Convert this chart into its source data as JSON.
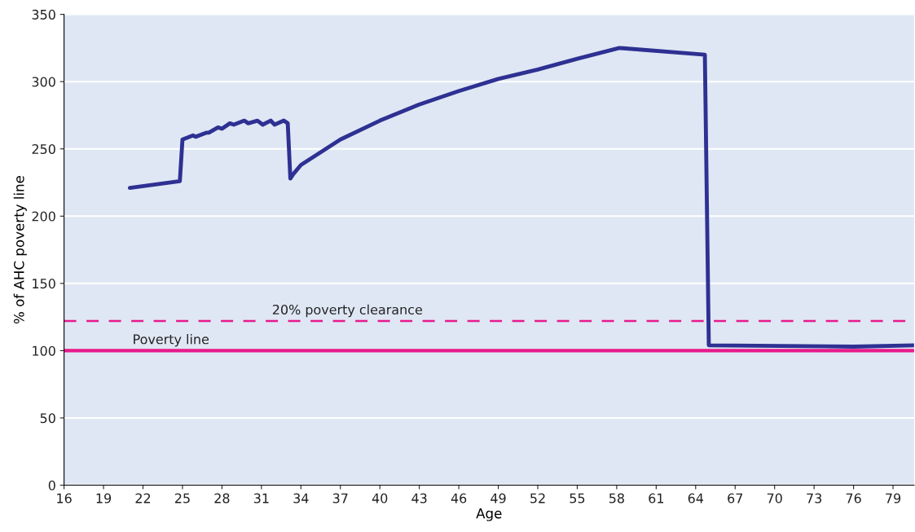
{
  "chart_data": {
    "type": "line",
    "xlabel": "Age",
    "ylabel": "% of AHC poverty line",
    "series": [
      {
        "color": "#2e3192",
        "x": [
          21.0,
          24.8,
          25.0,
          25.8,
          26.0,
          26.8,
          27.0,
          27.7,
          28.0,
          28.6,
          28.9,
          29.7,
          30.0,
          30.7,
          31.1,
          31.7,
          32.0,
          32.7,
          33.0,
          33.2,
          33.4,
          34,
          37,
          40,
          43,
          46,
          49,
          52,
          55,
          58.2,
          64.7,
          65.0,
          76.0,
          80.6
        ],
        "values": [
          221,
          226,
          257,
          260,
          259,
          262,
          262,
          266,
          265,
          269,
          268,
          271,
          269,
          271,
          268,
          271,
          268,
          271,
          269,
          228,
          231,
          238,
          257,
          271,
          283,
          293,
          302,
          309,
          317,
          325,
          320,
          104,
          103,
          104
        ]
      }
    ],
    "xlim": [
      16,
      80.6
    ],
    "xticks": [
      16,
      19,
      22,
      25,
      28,
      31,
      34,
      37,
      40,
      43,
      46,
      49,
      52,
      55,
      58,
      61,
      64,
      67,
      70,
      73,
      76,
      79
    ],
    "ylim": [
      0,
      350
    ],
    "yticks": [
      0,
      50,
      100,
      150,
      200,
      250,
      300,
      350
    ],
    "grid": "y",
    "line_style": "solid",
    "ref_lines": [
      {
        "axis": "y",
        "value": 122,
        "label": "20% poverty clearance",
        "color": "#e8198b",
        "line_style": "dashed"
      },
      {
        "axis": "y",
        "value": 100,
        "label": "Poverty line",
        "color": "#e8198b",
        "line_style": "solid"
      }
    ]
  }
}
